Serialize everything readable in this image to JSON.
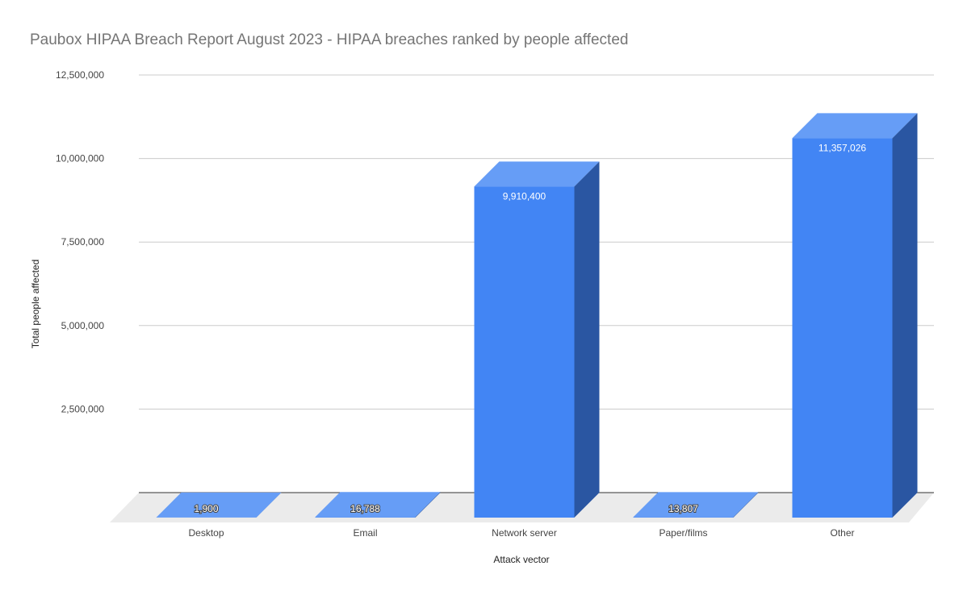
{
  "chart_data": {
    "type": "bar",
    "title": "Paubox HIPAA Breach Report August 2023 - HIPAA breaches ranked by people affected",
    "xlabel": "Attack vector",
    "ylabel": "Total people affected",
    "categories": [
      "Desktop",
      "Email",
      "Network server",
      "Paper/films",
      "Other"
    ],
    "values": [
      1900,
      16788,
      9910400,
      13807,
      11357026
    ],
    "data_labels": [
      "1,900",
      "16,788",
      "9,910,400",
      "13,807",
      "11,357,026"
    ],
    "y_ticks": [
      2500000,
      5000000,
      7500000,
      10000000,
      12500000
    ],
    "y_tick_labels": [
      "2,500,000",
      "5,000,000",
      "7,500,000",
      "10,000,000",
      "12,500,000"
    ],
    "ylim": [
      0,
      12500000
    ],
    "grid": true,
    "legend": "none",
    "style": "3d",
    "colors": {
      "bar_front": "#4285f4",
      "bar_top": "#669df6",
      "bar_side": "#2a56a2",
      "floor": "#ebebeb",
      "gridline": "#cccccc",
      "baseline": "#333333"
    }
  }
}
